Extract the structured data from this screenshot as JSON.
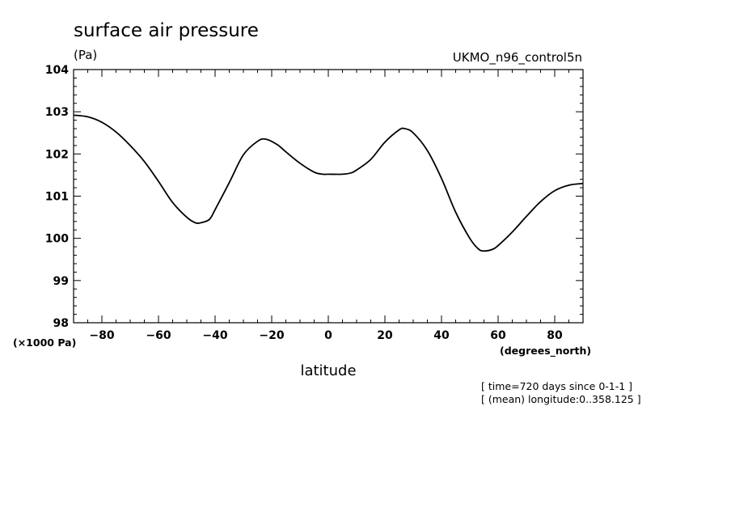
{
  "chart_data": {
    "type": "line",
    "title": "surface air pressure",
    "units": "(Pa)",
    "dataset_label": "UKMO_n96_control5n",
    "xlabel": "latitude",
    "xunits": "(degrees_north)",
    "ylabel": "",
    "y_multiplier": "(×1000 Pa)",
    "xlim": [
      -90,
      90
    ],
    "ylim": [
      98,
      104
    ],
    "xticks": [
      -80,
      -60,
      -40,
      -20,
      0,
      20,
      40,
      60,
      80
    ],
    "yticks": [
      98,
      99,
      100,
      101,
      102,
      103,
      104
    ],
    "grid": false,
    "notes": [
      "[ time=720 days since 0-1-1 ]",
      "[ (mean) longitude:0..358.125 ]"
    ],
    "series": [
      {
        "color": "#000000",
        "x": [
          -90,
          -85,
          -80,
          -75,
          -70,
          -65,
          -60,
          -55,
          -50,
          -47,
          -45,
          -42,
          -40,
          -35,
          -30,
          -25,
          -22,
          -18,
          -15,
          -10,
          -5,
          -2,
          0,
          5,
          8,
          10,
          15,
          20,
          25,
          27,
          30,
          35,
          40,
          45,
          50,
          53,
          55,
          58,
          60,
          65,
          70,
          75,
          80,
          85,
          90
        ],
        "y": [
          102.92,
          102.88,
          102.75,
          102.52,
          102.2,
          101.82,
          101.35,
          100.85,
          100.5,
          100.37,
          100.37,
          100.45,
          100.68,
          101.32,
          101.98,
          102.3,
          102.35,
          102.22,
          102.05,
          101.78,
          101.57,
          101.52,
          101.52,
          101.52,
          101.55,
          101.62,
          101.87,
          102.28,
          102.57,
          102.6,
          102.5,
          102.08,
          101.42,
          100.62,
          100.0,
          99.75,
          99.7,
          99.74,
          99.83,
          100.15,
          100.52,
          100.87,
          101.13,
          101.26,
          101.3
        ]
      }
    ]
  }
}
